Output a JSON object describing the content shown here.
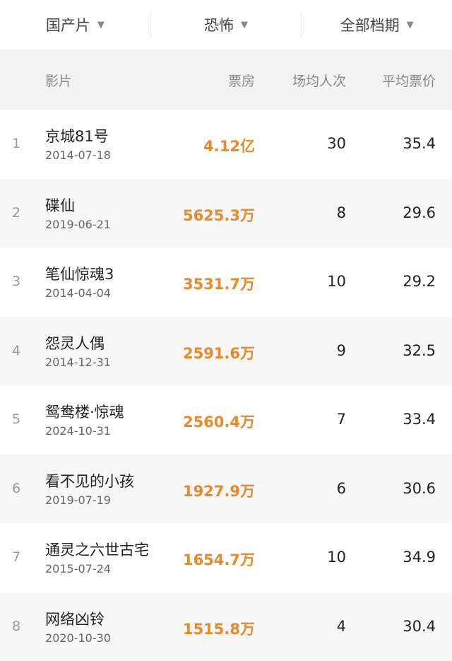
{
  "filters": [
    {
      "label": "国产片",
      "icon": "caret-down-icon",
      "arrow": "▼"
    },
    {
      "label": "恐怖",
      "icon": "caret-down-icon",
      "arrow": "▼"
    },
    {
      "label": "全部档期",
      "icon": "caret-down-icon",
      "arrow": "▼"
    }
  ],
  "columns": {
    "film": "影片",
    "box_office": "票房",
    "avg_attendance": "场均人次",
    "avg_price": "平均票价"
  },
  "colors": {
    "box_office": "#e8892a",
    "header_bg": "#f3f3f3",
    "alt_row_bg": "#f7f7f7"
  },
  "rows": [
    {
      "rank": "1",
      "title": "京城81号",
      "date": "2014-07-18",
      "box_office": "4.12亿",
      "avg_attendance": "30",
      "avg_price": "35.4"
    },
    {
      "rank": "2",
      "title": "碟仙",
      "date": "2019-06-21",
      "box_office": "5625.3万",
      "avg_attendance": "8",
      "avg_price": "29.6"
    },
    {
      "rank": "3",
      "title": "笔仙惊魂3",
      "date": "2014-04-04",
      "box_office": "3531.7万",
      "avg_attendance": "10",
      "avg_price": "29.2"
    },
    {
      "rank": "4",
      "title": "怨灵人偶",
      "date": "2014-12-31",
      "box_office": "2591.6万",
      "avg_attendance": "9",
      "avg_price": "32.5"
    },
    {
      "rank": "5",
      "title": "鸳鸯楼·惊魂",
      "date": "2024-10-31",
      "box_office": "2560.4万",
      "avg_attendance": "7",
      "avg_price": "33.4"
    },
    {
      "rank": "6",
      "title": "看不见的小孩",
      "date": "2019-07-19",
      "box_office": "1927.9万",
      "avg_attendance": "6",
      "avg_price": "30.6"
    },
    {
      "rank": "7",
      "title": "通灵之六世古宅",
      "date": "2015-07-24",
      "box_office": "1654.7万",
      "avg_attendance": "10",
      "avg_price": "34.9"
    },
    {
      "rank": "8",
      "title": "网络凶铃",
      "date": "2020-10-30",
      "box_office": "1515.8万",
      "avg_attendance": "4",
      "avg_price": "30.4"
    }
  ]
}
